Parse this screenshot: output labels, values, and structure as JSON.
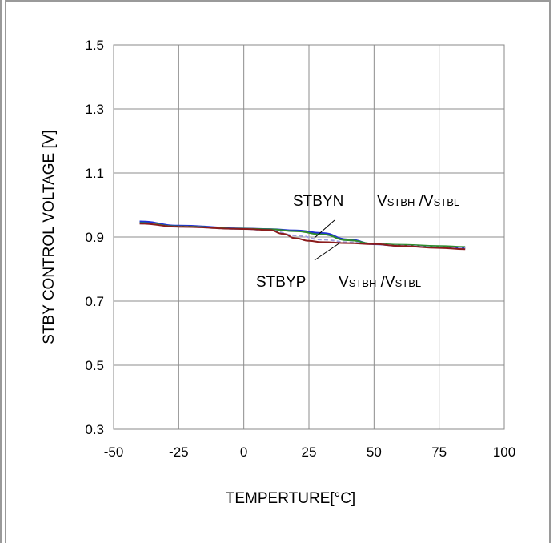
{
  "chart_data": {
    "type": "line",
    "title": "",
    "xlabel": "TEMPERTURE[°C]",
    "ylabel": "STBY CONTROL VOLTAGE [V]",
    "xlim": [
      -50,
      100
    ],
    "ylim": [
      0.3,
      1.5
    ],
    "x_ticks": [
      -50,
      -25,
      0,
      25,
      50,
      75,
      100
    ],
    "y_ticks": [
      0.3,
      0.5,
      0.7,
      0.9,
      1.1,
      1.3,
      1.5
    ],
    "x_tick_labels": [
      "-50",
      "-25",
      "0",
      "25",
      "50",
      "75",
      "100"
    ],
    "y_tick_labels": [
      "0.3",
      "0.5",
      "0.7",
      "0.9",
      "1.1",
      "1.3",
      "1.5"
    ],
    "grid": true,
    "series": [
      {
        "color": "#1f2fd6",
        "x": [
          -40,
          -25,
          0,
          10,
          20,
          30,
          40,
          50,
          60,
          75,
          85
        ],
        "y": [
          0.948,
          0.935,
          0.926,
          0.924,
          0.92,
          0.912,
          0.892,
          0.878,
          0.873,
          0.868,
          0.865
        ]
      },
      {
        "color": "#2e8b2e",
        "x": [
          -40,
          -25,
          0,
          10,
          20,
          30,
          40,
          50,
          60,
          75,
          85
        ],
        "y": [
          0.944,
          0.933,
          0.926,
          0.924,
          0.918,
          0.908,
          0.89,
          0.879,
          0.876,
          0.872,
          0.869
        ]
      },
      {
        "color": "#a0a0e0",
        "x": [
          -40,
          -25,
          0,
          10,
          20,
          30,
          40,
          50,
          60,
          75,
          85
        ],
        "y": [
          0.942,
          0.932,
          0.925,
          0.92,
          0.905,
          0.892,
          0.884,
          0.878,
          0.873,
          0.868,
          0.865
        ]
      },
      {
        "color": "#8b1c1c",
        "x": [
          -40,
          -25,
          0,
          10,
          15,
          20,
          25,
          30,
          40,
          50,
          60,
          75,
          85
        ],
        "y": [
          0.942,
          0.932,
          0.925,
          0.922,
          0.91,
          0.896,
          0.888,
          0.884,
          0.881,
          0.878,
          0.872,
          0.866,
          0.862
        ]
      }
    ],
    "annotations": [
      {
        "id": "stbyn",
        "text": "STBYN",
        "v1": "V",
        "s1": "STBH",
        "sep": " /",
        "v2": "V",
        "s2": "STBL"
      },
      {
        "id": "stbyp",
        "text": "STBYP",
        "v1": "V",
        "s1": "STBH",
        "sep": " /",
        "v2": "V",
        "s2": "STBL"
      }
    ]
  }
}
